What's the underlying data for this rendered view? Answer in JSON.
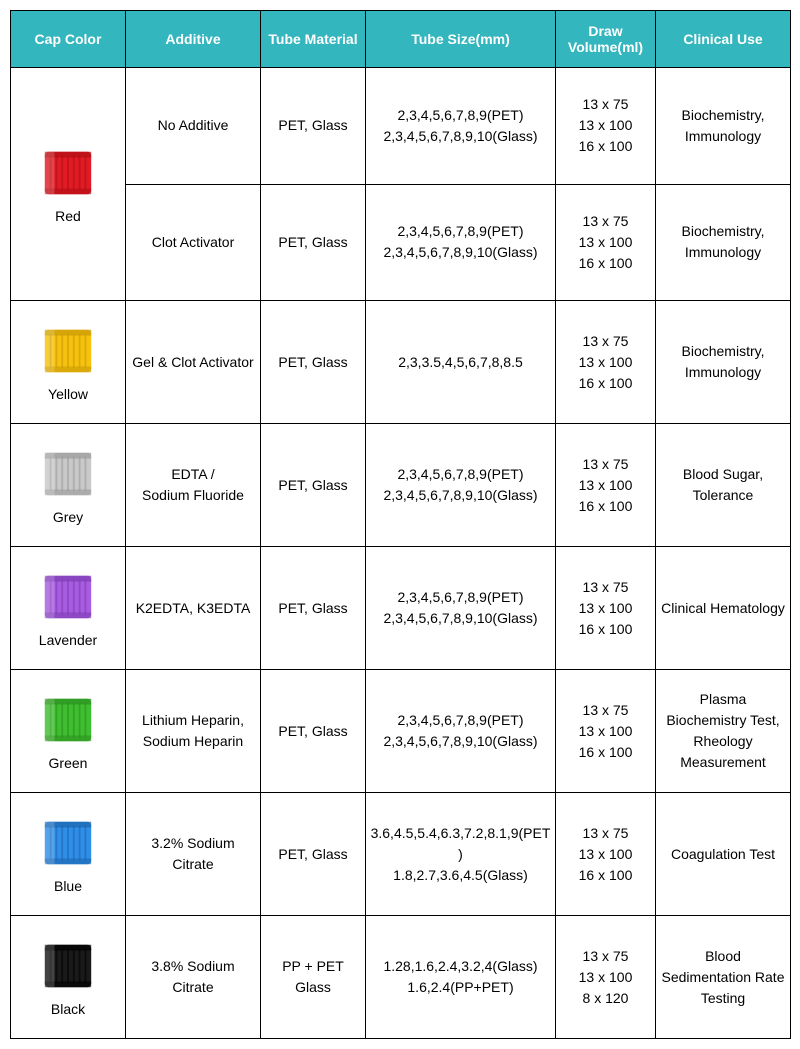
{
  "header_bg": "#33b6bd",
  "headers": [
    "Cap Color",
    "Additive",
    "Tube Material",
    "Tube Size(mm)",
    "Draw Volume(ml)",
    "Clinical Use"
  ],
  "caps": {
    "red": {
      "label": "Red",
      "primary": "#e01b24",
      "shade": "#b00e16"
    },
    "yellow": {
      "label": "Yellow",
      "primary": "#f6c20f",
      "shade": "#c99a05"
    },
    "grey": {
      "label": "Grey",
      "primary": "#c9c9c9",
      "shade": "#9a9a9a"
    },
    "lavender": {
      "label": "Lavender",
      "primary": "#a85de0",
      "shade": "#7d3cb3"
    },
    "green": {
      "label": "Green",
      "primary": "#3fbf2f",
      "shade": "#2b8f20"
    },
    "blue": {
      "label": "Blue",
      "primary": "#2f8fe8",
      "shade": "#1d64ad"
    },
    "black": {
      "label": "Black",
      "primary": "#1a1a1a",
      "shade": "#000000"
    }
  },
  "rows": [
    {
      "cap": "red",
      "rowspan": 2,
      "additive": "No Additive",
      "material": "PET, Glass",
      "size": "2,3,4,5,6,7,8,9(PET)\n2,3,4,5,6,7,8,9,10(Glass)",
      "volume": "13 x 75\n13 x 100\n16 x 100",
      "use": "Biochemistry, Immunology"
    },
    {
      "cap": null,
      "additive": "Clot Activator",
      "material": "PET, Glass",
      "size": "2,3,4,5,6,7,8,9(PET)\n2,3,4,5,6,7,8,9,10(Glass)",
      "volume": "13 x 75\n13 x 100\n16 x 100",
      "use": "Biochemistry, Immunology"
    },
    {
      "cap": "yellow",
      "additive": "Gel & Clot Activator",
      "material": "PET, Glass",
      "size": "2,3,3.5,4,5,6,7,8,8.5",
      "volume": "13 x 75\n13 x 100\n16 x 100",
      "use": "Biochemistry, Immunology"
    },
    {
      "cap": "grey",
      "additive": "EDTA /\nSodium Fluoride",
      "material": "PET, Glass",
      "size": "2,3,4,5,6,7,8,9(PET)\n2,3,4,5,6,7,8,9,10(Glass)",
      "volume": "13 x 75\n13 x 100\n16 x 100",
      "use": "Blood Sugar, Tolerance"
    },
    {
      "cap": "lavender",
      "additive": "K2EDTA, K3EDTA",
      "material": "PET, Glass",
      "size": "2,3,4,5,6,7,8,9(PET)\n2,3,4,5,6,7,8,9,10(Glass)",
      "volume": "13 x 75\n13 x 100\n16 x 100",
      "use": "Clinical Hematology"
    },
    {
      "cap": "green",
      "additive": "Lithium Heparin, Sodium Heparin",
      "material": "PET, Glass",
      "size": "2,3,4,5,6,7,8,9(PET)\n2,3,4,5,6,7,8,9,10(Glass)",
      "volume": "13 x 75\n13 x 100\n16 x 100",
      "use": "Plasma Biochemistry Test, Rheology Measurement"
    },
    {
      "cap": "blue",
      "additive": "3.2% Sodium Citrate",
      "material": "PET, Glass",
      "size": "3.6,4.5,5.4,6.3,7.2,8.1,9(PET)\n1.8,2.7,3.6,4.5(Glass)",
      "volume": "13 x 75\n13 x 100\n16 x 100",
      "use": "Coagulation Test"
    },
    {
      "cap": "black",
      "additive": "3.8% Sodium Citrate",
      "material": "PP + PET Glass",
      "size": "1.28,1.6,2.4,3.2,4(Glass)\n1.6,2.4(PP+PET)",
      "volume": "13 x 75\n13 x 100\n8 x 120",
      "use": "Blood Sedimentation Rate Testing"
    }
  ]
}
